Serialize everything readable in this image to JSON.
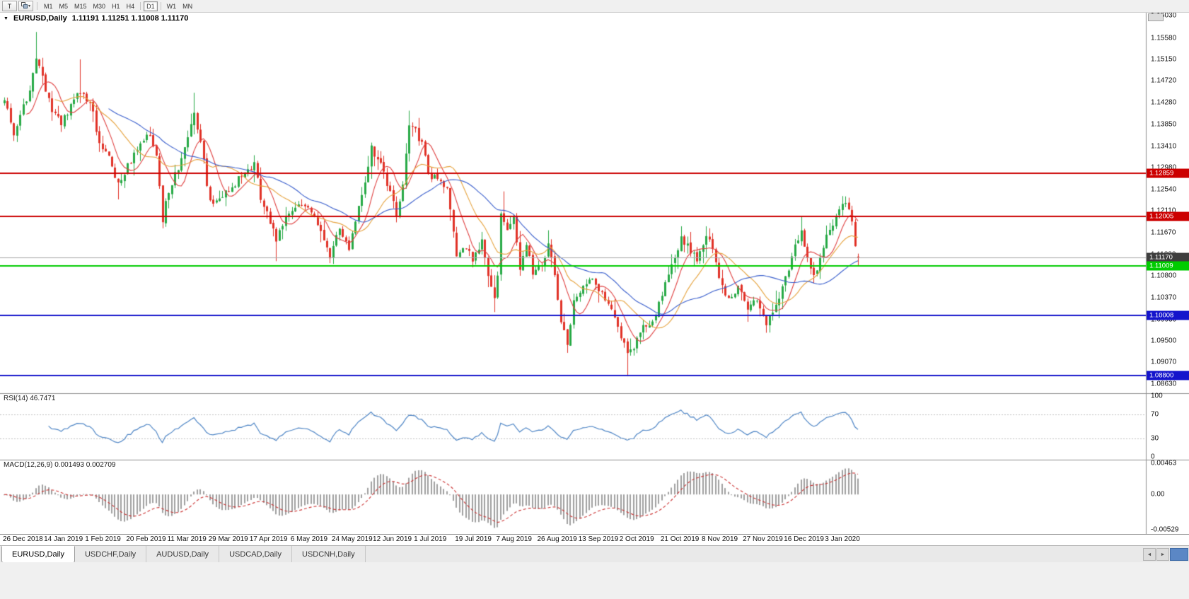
{
  "toolbar": {
    "t_label": "T",
    "timeframes": [
      "M1",
      "M5",
      "M15",
      "M30",
      "H1",
      "H4",
      "D1",
      "W1",
      "MN"
    ],
    "active_timeframe": "D1"
  },
  "chart": {
    "symbol_period": "EURUSD,Daily",
    "ohlc_text": "1.11191 1.11251 1.11008 1.11170"
  },
  "price_axis": {
    "ticks": [
      1.1603,
      1.1558,
      1.1515,
      1.1472,
      1.1428,
      1.1385,
      1.1341,
      1.1298,
      1.1254,
      1.1211,
      1.1167,
      1.1123,
      1.108,
      1.1037,
      1.0993,
      1.095,
      1.0907,
      1.0863
    ]
  },
  "rsi": {
    "header": "RSI(14) 46.7471",
    "period": 14,
    "value": 46.7471,
    "axis_ticks": [
      100,
      70,
      30,
      0
    ],
    "levels": [
      70,
      30
    ],
    "color": "#4f86c6"
  },
  "macd": {
    "header": "MACD(12,26,9) 0.001493 0.002709",
    "params": {
      "fast": 12,
      "slow": 26,
      "signal": 9
    },
    "values": {
      "main": 0.001493,
      "signal": 0.002709
    },
    "axis_ticks": [
      {
        "value": 0.00463,
        "label": "0.00463"
      },
      {
        "value": 0,
        "label": "0.00"
      },
      {
        "value": -0.00529,
        "label": "-0.00529"
      }
    ],
    "range": {
      "max": 0.0052,
      "min": -0.0059
    },
    "histogram_color": "#a0a0a0",
    "signal_color": "#cc3333"
  },
  "time_axis": {
    "labels": [
      {
        "text": "26 Dec 2018",
        "bar": 0
      },
      {
        "text": "14 Jan 2019",
        "bar": 13
      },
      {
        "text": "1 Feb 2019",
        "bar": 26
      },
      {
        "text": "20 Feb 2019",
        "bar": 39
      },
      {
        "text": "11 Mar 2019",
        "bar": 52
      },
      {
        "text": "29 Mar 2019",
        "bar": 65
      },
      {
        "text": "17 Apr 2019",
        "bar": 78
      },
      {
        "text": "6 May 2019",
        "bar": 91
      },
      {
        "text": "24 May 2019",
        "bar": 104
      },
      {
        "text": "12 Jun 2019",
        "bar": 117
      },
      {
        "text": "1 Jul 2019",
        "bar": 130
      },
      {
        "text": "19 Jul 2019",
        "bar": 143
      },
      {
        "text": "7 Aug 2019",
        "bar": 156
      },
      {
        "text": "26 Aug 2019",
        "bar": 169
      },
      {
        "text": "13 Sep 2019",
        "bar": 182
      },
      {
        "text": "2 Oct 2019",
        "bar": 195
      },
      {
        "text": "21 Oct 2019",
        "bar": 208
      },
      {
        "text": "8 Nov 2019",
        "bar": 221
      },
      {
        "text": "27 Nov 2019",
        "bar": 234
      },
      {
        "text": "16 Dec 2019",
        "bar": 247
      },
      {
        "text": "3 Jan 2020",
        "bar": 260
      }
    ]
  },
  "tabs": {
    "items": [
      "EURUSD,Daily",
      "USDCHF,Daily",
      "AUDUSD,Daily",
      "USDCAD,Daily",
      "USDCNH,Daily"
    ],
    "active": "EURUSD,Daily"
  },
  "chart_data": {
    "type": "candlestick",
    "symbol": "EURUSD",
    "timeframe": "Daily",
    "bars": 271,
    "ylim": [
      1.0845,
      1.161
    ],
    "last_bar": {
      "open": 1.11191,
      "high": 1.11251,
      "low": 1.11008,
      "close": 1.1117
    },
    "colors": {
      "up": "#28aa46",
      "down": "#e13228"
    },
    "close_path": [
      [
        0,
        1.1435
      ],
      [
        3,
        1.1355
      ],
      [
        5,
        1.14
      ],
      [
        8,
        1.1455
      ],
      [
        10,
        1.152
      ],
      [
        12,
        1.1475
      ],
      [
        15,
        1.1415
      ],
      [
        18,
        1.1385
      ],
      [
        21,
        1.142
      ],
      [
        24,
        1.1452
      ],
      [
        27,
        1.143
      ],
      [
        30,
        1.135
      ],
      [
        33,
        1.1325
      ],
      [
        36,
        1.1262
      ],
      [
        39,
        1.13
      ],
      [
        42,
        1.1335
      ],
      [
        45,
        1.137
      ],
      [
        48,
        1.132
      ],
      [
        50,
        1.1196
      ],
      [
        52,
        1.1252
      ],
      [
        55,
        1.13
      ],
      [
        58,
        1.136
      ],
      [
        60,
        1.1415
      ],
      [
        63,
        1.131
      ],
      [
        65,
        1.1226
      ],
      [
        68,
        1.124
      ],
      [
        72,
        1.1262
      ],
      [
        76,
        1.1285
      ],
      [
        79,
        1.1302
      ],
      [
        81,
        1.1238
      ],
      [
        84,
        1.119
      ],
      [
        86,
        1.1152
      ],
      [
        89,
        1.1198
      ],
      [
        93,
        1.122
      ],
      [
        97,
        1.1212
      ],
      [
        100,
        1.1165
      ],
      [
        103,
        1.1122
      ],
      [
        106,
        1.118
      ],
      [
        109,
        1.1138
      ],
      [
        112,
        1.1215
      ],
      [
        114,
        1.126
      ],
      [
        116,
        1.1335
      ],
      [
        119,
        1.13
      ],
      [
        122,
        1.125
      ],
      [
        124,
        1.12
      ],
      [
        126,
        1.1262
      ],
      [
        128,
        1.139
      ],
      [
        130,
        1.137
      ],
      [
        132,
        1.1345
      ],
      [
        134,
        1.1288
      ],
      [
        137,
        1.127
      ],
      [
        140,
        1.1252
      ],
      [
        143,
        1.1125
      ],
      [
        146,
        1.1138
      ],
      [
        148,
        1.111
      ],
      [
        151,
        1.1148
      ],
      [
        153,
        1.1075
      ],
      [
        155,
        1.104
      ],
      [
        156,
        1.1085
      ],
      [
        157,
        1.12
      ],
      [
        159,
        1.1175
      ],
      [
        161,
        1.12
      ],
      [
        163,
        1.11
      ],
      [
        165,
        1.1135
      ],
      [
        167,
        1.109
      ],
      [
        170,
        1.1098
      ],
      [
        172,
        1.115
      ],
      [
        174,
        1.1088
      ],
      [
        176,
        1.0992
      ],
      [
        178,
        1.094
      ],
      [
        180,
        1.1035
      ],
      [
        183,
        1.106
      ],
      [
        186,
        1.1072
      ],
      [
        189,
        1.104
      ],
      [
        192,
        1.1012
      ],
      [
        195,
        1.0962
      ],
      [
        197,
        1.092
      ],
      [
        199,
        1.0935
      ],
      [
        202,
        1.098
      ],
      [
        205,
        1.0988
      ],
      [
        208,
        1.1042
      ],
      [
        211,
        1.1098
      ],
      [
        214,
        1.1155
      ],
      [
        217,
        1.1132
      ],
      [
        219,
        1.1108
      ],
      [
        222,
        1.1158
      ],
      [
        224,
        1.1138
      ],
      [
        226,
        1.1075
      ],
      [
        229,
        1.103
      ],
      [
        232,
        1.1062
      ],
      [
        235,
        1.1008
      ],
      [
        238,
        1.1032
      ],
      [
        241,
        1.0985
      ],
      [
        244,
        1.1022
      ],
      [
        247,
        1.1072
      ],
      [
        250,
        1.1145
      ],
      [
        252,
        1.1165
      ],
      [
        254,
        1.111
      ],
      [
        256,
        1.1078
      ],
      [
        258,
        1.1115
      ],
      [
        260,
        1.1162
      ],
      [
        262,
        1.1178
      ],
      [
        264,
        1.1212
      ],
      [
        266,
        1.1232
      ],
      [
        268,
        1.1182
      ],
      [
        269,
        1.114
      ],
      [
        270,
        1.1117
      ]
    ],
    "wick_highs": [
      [
        10,
        1.157
      ],
      [
        24,
        1.1515
      ],
      [
        60,
        1.1448
      ],
      [
        116,
        1.1348
      ],
      [
        128,
        1.1412
      ],
      [
        158,
        1.125
      ],
      [
        214,
        1.118
      ],
      [
        222,
        1.118
      ],
      [
        252,
        1.1199
      ],
      [
        266,
        1.124
      ]
    ],
    "wick_lows": [
      [
        36,
        1.1234
      ],
      [
        50,
        1.1176
      ],
      [
        86,
        1.111
      ],
      [
        103,
        1.1106
      ],
      [
        155,
        1.1027
      ],
      [
        178,
        1.0926
      ],
      [
        197,
        1.0879
      ],
      [
        241,
        1.0981
      ],
      [
        256,
        1.1066
      ],
      [
        270,
        1.11008
      ]
    ],
    "moving_averages": [
      {
        "period": 8,
        "color": "#e04040"
      },
      {
        "period": 17,
        "color": "#e6a23c"
      },
      {
        "period": 34,
        "color": "#3a5fcd"
      }
    ],
    "levels": [
      {
        "price": 1.12859,
        "label": "1.12859",
        "color": "#cc0000",
        "width": 2,
        "role": "resistance"
      },
      {
        "price": 1.12005,
        "label": "1.12005",
        "color": "#cc0000",
        "width": 2,
        "role": "resistance"
      },
      {
        "price": 1.1117,
        "label": "1.11170",
        "color": "#a8a8a8",
        "badge_color": "#3e3e3e",
        "width": 1,
        "role": "current-price"
      },
      {
        "price": 1.11009,
        "label": "1.11009",
        "color": "#00cc00",
        "width": 2,
        "role": "support"
      },
      {
        "price": 1.10008,
        "label": "1.10008",
        "color": "#1515cc",
        "width": 2,
        "role": "support"
      },
      {
        "price": 1.088,
        "label": "1.08800",
        "color": "#1515cc",
        "width": 2,
        "role": "support"
      }
    ]
  }
}
